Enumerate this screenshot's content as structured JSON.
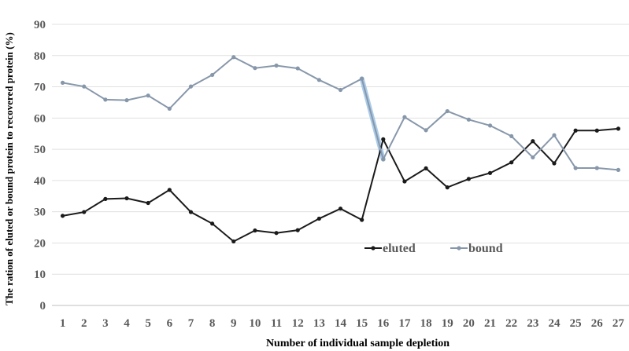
{
  "chart_data": {
    "type": "line",
    "title": "",
    "xlabel": "Number of individual sample depletion",
    "ylabel": "The ration of eluted or bound protein to recovered protein (%)",
    "categories": [
      "1",
      "2",
      "3",
      "4",
      "5",
      "6",
      "7",
      "8",
      "9",
      "10",
      "11",
      "12",
      "13",
      "14",
      "15",
      "16",
      "17",
      "18",
      "19",
      "20",
      "21",
      "22",
      "23",
      "24",
      "25",
      "26",
      "27"
    ],
    "ylim": [
      0,
      90
    ],
    "yticks": [
      "0",
      "10",
      "20",
      "30",
      "40",
      "50",
      "60",
      "70",
      "80",
      "90"
    ],
    "grid": true,
    "legend_position": "inside-lower-center",
    "series": [
      {
        "name": "eluted",
        "color": "#1a1a1a",
        "values": [
          28.7,
          29.9,
          34.1,
          34.3,
          32.8,
          37.0,
          29.9,
          26.2,
          20.5,
          24.0,
          23.2,
          24.1,
          27.8,
          31.0,
          27.4,
          53.2,
          39.7,
          43.9,
          37.8,
          40.5,
          42.4,
          45.8,
          52.6,
          45.5,
          56.0,
          56.0,
          56.6
        ]
      },
      {
        "name": "bound",
        "color": "#8797aa",
        "values": [
          71.3,
          70.1,
          65.9,
          65.7,
          67.2,
          63.0,
          70.1,
          73.8,
          79.5,
          76.0,
          76.8,
          75.9,
          72.2,
          69.0,
          72.6,
          46.8,
          60.3,
          56.1,
          62.2,
          59.5,
          57.6,
          54.2,
          47.4,
          54.5,
          44.0,
          44.0,
          43.4
        ]
      }
    ],
    "highlight": {
      "series": "bound",
      "from_category": "15",
      "to_category": "16",
      "color": "#9cc3e4"
    }
  }
}
